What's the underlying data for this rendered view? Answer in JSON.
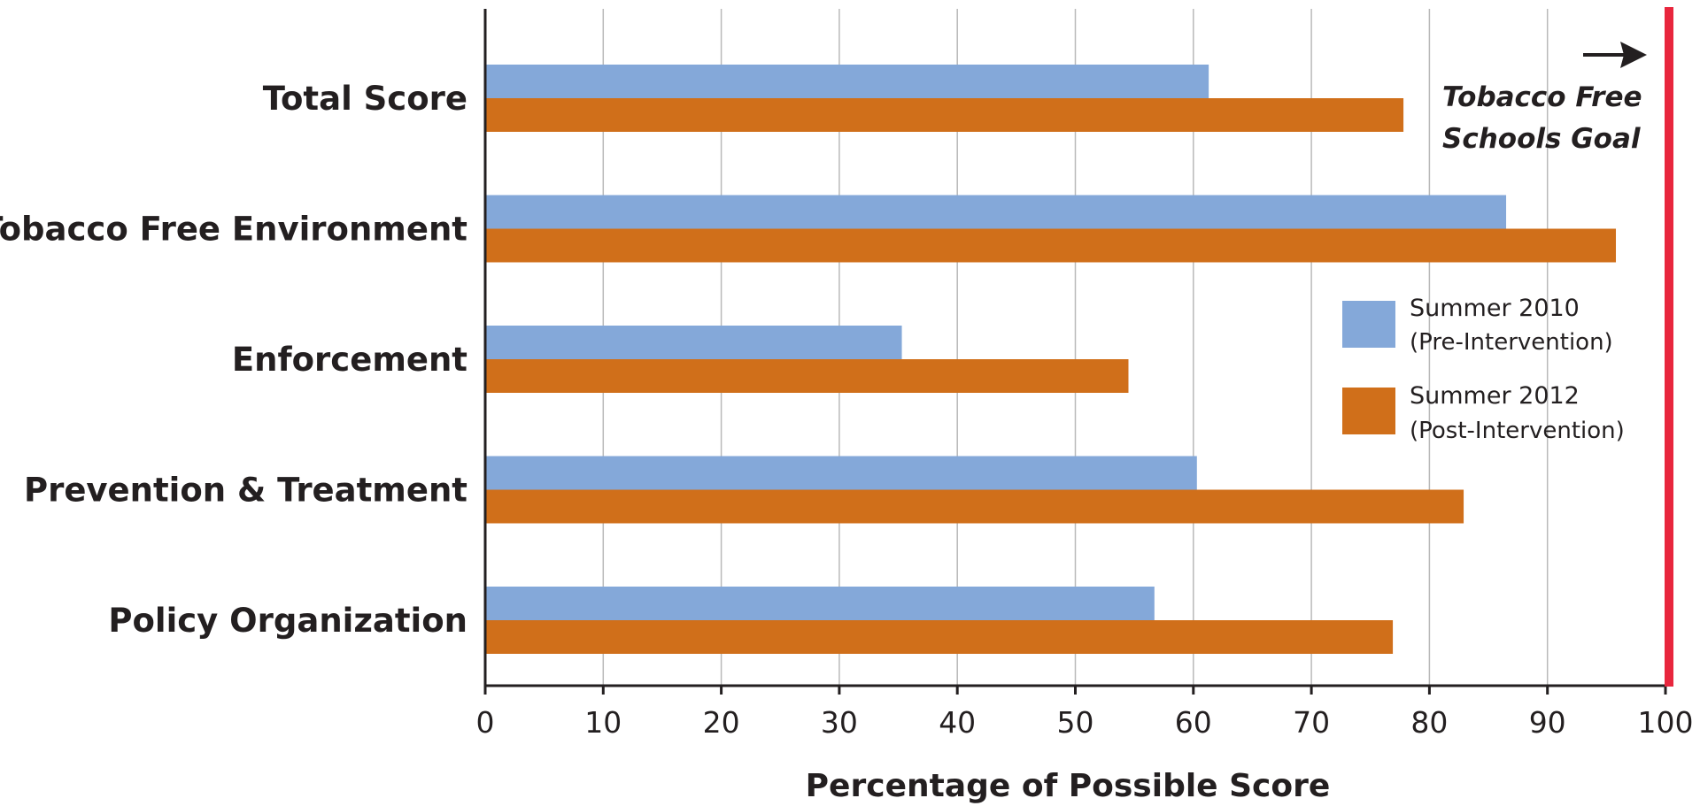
{
  "chart_data": {
    "type": "bar",
    "orientation": "horizontal",
    "categories": [
      "Total Score",
      "Tobacco Free Environment",
      "Enforcement",
      "Prevention & Treatment",
      "Policy Organization"
    ],
    "series": [
      {
        "name": "Summer 2010",
        "sublabel": "(Pre-Intervention)",
        "color": "#84a8d9",
        "values": [
          61.3,
          86.5,
          35.3,
          60.3,
          56.7
        ]
      },
      {
        "name": "Summer 2012",
        "sublabel": "(Post-Intervention)",
        "color": "#d06f1a",
        "values": [
          77.8,
          95.8,
          54.5,
          82.9,
          76.9
        ]
      }
    ],
    "xlabel": "Percentage of Possible Score",
    "ylabel": "",
    "xlim": [
      0,
      100
    ],
    "xticks": [
      "0",
      "10",
      "20",
      "30",
      "40",
      "50",
      "60",
      "70",
      "80",
      "90",
      "100"
    ],
    "grid": "vertical",
    "legend_position": "right",
    "goal_line": {
      "value": 100,
      "label_line1": "Tobacco Free",
      "label_line2": "Schools Goal",
      "color": "#e8263d"
    }
  }
}
